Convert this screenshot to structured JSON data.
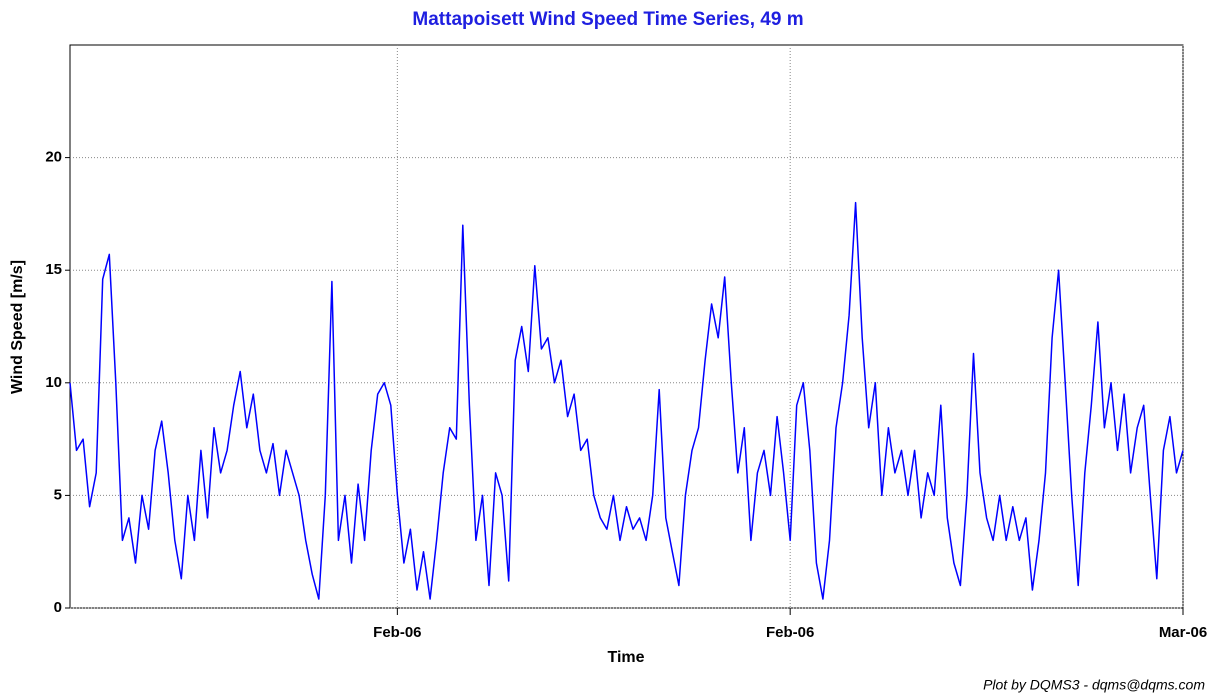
{
  "chart_data": {
    "type": "line",
    "title": "Mattapoisett Wind Speed Time Series, 49 m",
    "xlabel": "Time",
    "ylabel": "Wind Speed [m/s]",
    "footer": "Plot by DQMS3 - dqms@dqms.com",
    "color": "#0000ff",
    "x": [
      0,
      0.5,
      1,
      1.5,
      2,
      2.5,
      3,
      3.5,
      4,
      4.5,
      5,
      5.5,
      6,
      6.5,
      7,
      7.5,
      8,
      8.5,
      9,
      9.5,
      10,
      10.5,
      11,
      11.5,
      12,
      12.5,
      13,
      13.5,
      14,
      14.5,
      15,
      15.5,
      16,
      16.5,
      17,
      17.5,
      18,
      18.5,
      19,
      19.5,
      20,
      20.5,
      21,
      21.5,
      22,
      22.5,
      23,
      23.5,
      24,
      24.5,
      25,
      25.5,
      26,
      26.5,
      27,
      27.5,
      28,
      28.5,
      29,
      29.5,
      30,
      30.5,
      31,
      31.5,
      32,
      32.5,
      33,
      33.5,
      34,
      34.5,
      35,
      35.5,
      36,
      36.5,
      37,
      37.5,
      38,
      38.5,
      39,
      39.5,
      40,
      40.5,
      41,
      41.5,
      42,
      42.5,
      43,
      43.5,
      44,
      44.5,
      45,
      45.5,
      46,
      46.5,
      47,
      47.5,
      48,
      48.5,
      49,
      49.5,
      50,
      50.5,
      51,
      51.5,
      52,
      52.5,
      53,
      53.5,
      54,
      54.5,
      55,
      55.5,
      56,
      56.5,
      57,
      57.5,
      58,
      58.5,
      59,
      59.5,
      60,
      60.5,
      61,
      61.5,
      62,
      62.5,
      63,
      63.5,
      64,
      64.5,
      65,
      65.5,
      66,
      66.5,
      67,
      67.5,
      68,
      68.5,
      69,
      69.5,
      70,
      70.5,
      71,
      71.5,
      72,
      72.5,
      73,
      73.5,
      74,
      74.5,
      75,
      75.5,
      76,
      76.5,
      77,
      77.5,
      78,
      78.5,
      79,
      79.5,
      80,
      80.5,
      81,
      81.5,
      82,
      82.5,
      83,
      83.5,
      84,
      84.5,
      85
    ],
    "values": [
      10,
      7,
      7.5,
      4.5,
      6,
      14.6,
      15.7,
      10,
      3,
      4,
      2,
      5,
      3.5,
      7,
      8.3,
      6,
      3,
      1.3,
      5,
      3,
      7,
      4,
      8,
      6,
      7,
      9,
      10.5,
      8,
      9.5,
      7,
      6,
      7.3,
      5,
      7,
      6,
      5,
      3,
      1.5,
      0.4,
      5,
      14.5,
      3,
      5,
      2,
      5.5,
      3,
      7,
      9.5,
      10,
      9,
      5,
      2,
      3.5,
      0.8,
      2.5,
      0.4,
      3,
      6,
      8,
      7.5,
      17,
      9,
      3,
      5,
      1,
      6,
      5,
      1.2,
      11,
      12.5,
      10.5,
      15.2,
      11.5,
      12,
      10,
      11,
      8.5,
      9.5,
      7,
      7.5,
      5,
      4,
      3.5,
      5,
      3,
      4.5,
      3.5,
      4,
      3,
      5,
      9.7,
      4,
      2.5,
      1,
      5,
      7,
      8,
      11,
      13.5,
      12,
      14.7,
      10,
      6,
      8,
      3,
      6,
      7,
      5,
      8.5,
      6,
      3,
      9,
      10,
      7,
      2,
      0.4,
      3,
      8,
      10,
      13,
      18,
      12,
      8,
      10,
      5,
      8,
      6,
      7,
      5,
      7,
      4,
      6,
      5,
      9,
      4,
      2,
      1,
      5,
      11.3,
      6,
      4,
      3,
      5,
      3,
      4.5,
      3,
      4,
      0.8,
      3,
      6,
      12,
      15,
      10,
      5,
      1,
      6,
      9,
      12.7,
      8,
      10,
      7,
      9.5,
      6,
      8,
      9,
      5,
      1.3,
      7,
      8.5,
      6,
      7
    ],
    "xlim": [
      0,
      85
    ],
    "xticks": [
      {
        "value": 25,
        "label": "Feb-06"
      },
      {
        "value": 55,
        "label": "Feb-06"
      },
      {
        "value": 85,
        "label": "Mar-06"
      }
    ],
    "ylim": [
      0,
      25
    ],
    "yticks": [
      0,
      5,
      10,
      15,
      20
    ],
    "grid": true
  }
}
